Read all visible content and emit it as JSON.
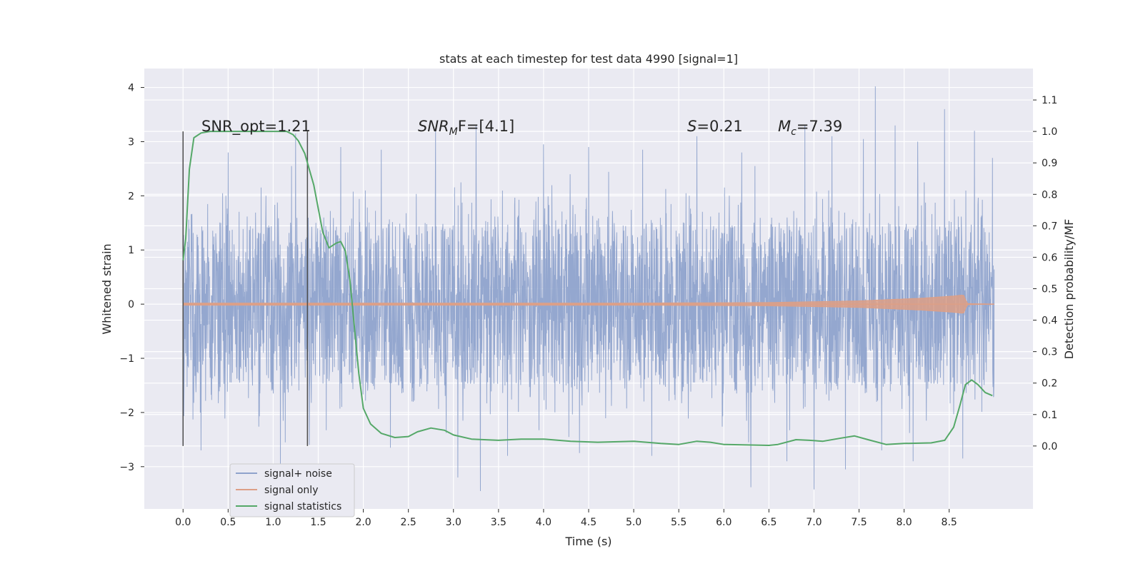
{
  "chart_data": {
    "type": "line",
    "title": "stats at each timestep for test data 4990 [signal=1]",
    "xlabel": "Time (s)",
    "ylabel_left": "Whitened strain",
    "ylabel_right": "Detection probability/MF",
    "xlim": [
      -0.43,
      9.43
    ],
    "ylim_left": [
      -3.78,
      4.35
    ],
    "ylim_right": [
      -0.2,
      1.2
    ],
    "x_ticks": [
      "0.0",
      "0.5",
      "1.0",
      "1.5",
      "2.0",
      "2.5",
      "3.0",
      "3.5",
      "4.0",
      "4.5",
      "5.0",
      "5.5",
      "6.0",
      "6.5",
      "7.0",
      "7.5",
      "8.0",
      "8.5"
    ],
    "y_left_ticks": [
      "4",
      "3",
      "2",
      "1",
      "0",
      "−1",
      "−2",
      "−3"
    ],
    "y_right_ticks": [
      "1.1",
      "1.0",
      "0.9",
      "0.8",
      "0.7",
      "0.6",
      "0.5",
      "0.4",
      "0.3",
      "0.2",
      "0.1",
      "0.0"
    ],
    "grid": true,
    "legend_position": "lower-left",
    "background": "#eaeaf2",
    "annotations": {
      "snr_opt": "SNR_opt=1.21",
      "snr_mf_var": "SNR",
      "snr_mf_sub": "M",
      "snr_mf_rest": "F=[4.1]",
      "s_var": "S",
      "s_val": "=0.21",
      "mc_var": "M",
      "mc_sub": "c",
      "mc_val": "=7.39"
    },
    "markers": [
      0.0,
      1.38
    ],
    "series": [
      {
        "name": "signal+ noise",
        "axis": "left",
        "color": "#8fa3cc",
        "x_range": [
          0.0,
          9.0
        ],
        "amplitude_core": 1.5,
        "peaks": [
          {
            "x": 0.2,
            "y": 2.85
          },
          {
            "x": 0.5,
            "y": 2.8
          },
          {
            "x": 1.25,
            "y": 3.15
          },
          {
            "x": 1.75,
            "y": 2.9
          },
          {
            "x": 2.2,
            "y": 2.85
          },
          {
            "x": 2.8,
            "y": 3.2
          },
          {
            "x": 3.25,
            "y": 3.3
          },
          {
            "x": 4.0,
            "y": 2.95
          },
          {
            "x": 4.5,
            "y": 2.9
          },
          {
            "x": 5.1,
            "y": 2.85
          },
          {
            "x": 5.7,
            "y": 3.1
          },
          {
            "x": 6.2,
            "y": 2.8
          },
          {
            "x": 6.9,
            "y": 3.3
          },
          {
            "x": 7.2,
            "y": 3.1
          },
          {
            "x": 7.55,
            "y": 3.05
          },
          {
            "x": 7.68,
            "y": 4.02
          },
          {
            "x": 7.9,
            "y": 3.3
          },
          {
            "x": 8.15,
            "y": 3.0
          },
          {
            "x": 8.45,
            "y": 3.6
          },
          {
            "x": 8.78,
            "y": 3.2
          },
          {
            "x": 8.98,
            "y": 2.7
          }
        ],
        "troughs": [
          {
            "x": 0.2,
            "y": -2.7
          },
          {
            "x": 1.08,
            "y": -2.95
          },
          {
            "x": 1.4,
            "y": -2.6
          },
          {
            "x": 2.3,
            "y": -2.65
          },
          {
            "x": 3.05,
            "y": -3.2
          },
          {
            "x": 3.3,
            "y": -3.45
          },
          {
            "x": 3.6,
            "y": -2.8
          },
          {
            "x": 4.4,
            "y": -2.75
          },
          {
            "x": 5.2,
            "y": -2.8
          },
          {
            "x": 6.3,
            "y": -3.38
          },
          {
            "x": 6.7,
            "y": -2.9
          },
          {
            "x": 7.0,
            "y": -3.42
          },
          {
            "x": 7.35,
            "y": -3.05
          },
          {
            "x": 7.75,
            "y": -2.7
          },
          {
            "x": 8.1,
            "y": -2.9
          },
          {
            "x": 8.65,
            "y": -2.85
          }
        ]
      },
      {
        "name": "signal only",
        "axis": "left",
        "color": "#dd9f86",
        "envelope": [
          {
            "x": 0.0,
            "amp": 0.02
          },
          {
            "x": 5.0,
            "amp": 0.02
          },
          {
            "x": 6.5,
            "amp": 0.03
          },
          {
            "x": 7.5,
            "amp": 0.06
          },
          {
            "x": 8.2,
            "amp": 0.11
          },
          {
            "x": 8.55,
            "amp": 0.15
          },
          {
            "x": 8.66,
            "amp": 0.17
          },
          {
            "x": 8.7,
            "amp": 0.01
          },
          {
            "x": 9.0,
            "amp": 0.0
          }
        ]
      },
      {
        "name": "signal statistics",
        "axis": "right",
        "color": "#55a868",
        "points": [
          [
            0.0,
            0.59
          ],
          [
            0.03,
            0.66
          ],
          [
            0.07,
            0.88
          ],
          [
            0.12,
            0.98
          ],
          [
            0.2,
            0.995
          ],
          [
            0.3,
            1.0
          ],
          [
            1.0,
            1.0
          ],
          [
            1.15,
            1.0
          ],
          [
            1.22,
            0.99
          ],
          [
            1.28,
            0.97
          ],
          [
            1.35,
            0.93
          ],
          [
            1.45,
            0.83
          ],
          [
            1.55,
            0.68
          ],
          [
            1.62,
            0.63
          ],
          [
            1.7,
            0.645
          ],
          [
            1.75,
            0.65
          ],
          [
            1.8,
            0.62
          ],
          [
            1.85,
            0.53
          ],
          [
            1.9,
            0.38
          ],
          [
            1.95,
            0.23
          ],
          [
            2.0,
            0.12
          ],
          [
            2.08,
            0.07
          ],
          [
            2.2,
            0.04
          ],
          [
            2.35,
            0.027
          ],
          [
            2.5,
            0.03
          ],
          [
            2.6,
            0.045
          ],
          [
            2.75,
            0.057
          ],
          [
            2.9,
            0.05
          ],
          [
            3.0,
            0.035
          ],
          [
            3.2,
            0.022
          ],
          [
            3.5,
            0.018
          ],
          [
            3.75,
            0.022
          ],
          [
            4.0,
            0.022
          ],
          [
            4.3,
            0.015
          ],
          [
            4.6,
            0.012
          ],
          [
            5.0,
            0.015
          ],
          [
            5.3,
            0.008
          ],
          [
            5.5,
            0.005
          ],
          [
            5.7,
            0.015
          ],
          [
            5.85,
            0.012
          ],
          [
            6.0,
            0.005
          ],
          [
            6.5,
            0.002
          ],
          [
            6.6,
            0.005
          ],
          [
            6.8,
            0.02
          ],
          [
            6.95,
            0.018
          ],
          [
            7.1,
            0.015
          ],
          [
            7.3,
            0.025
          ],
          [
            7.45,
            0.032
          ],
          [
            7.6,
            0.02
          ],
          [
            7.8,
            0.005
          ],
          [
            8.0,
            0.008
          ],
          [
            8.3,
            0.01
          ],
          [
            8.45,
            0.018
          ],
          [
            8.55,
            0.06
          ],
          [
            8.62,
            0.13
          ],
          [
            8.68,
            0.195
          ],
          [
            8.75,
            0.21
          ],
          [
            8.82,
            0.195
          ],
          [
            8.9,
            0.17
          ],
          [
            8.98,
            0.16
          ]
        ]
      }
    ]
  }
}
